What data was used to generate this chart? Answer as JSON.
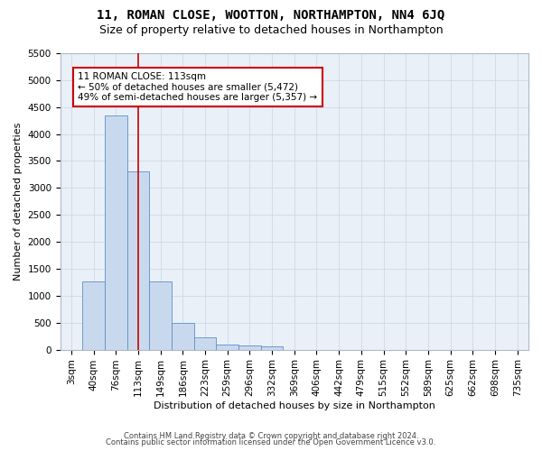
{
  "title": "11, ROMAN CLOSE, WOOTTON, NORTHAMPTON, NN4 6JQ",
  "subtitle": "Size of property relative to detached houses in Northampton",
  "xlabel": "Distribution of detached houses by size in Northampton",
  "ylabel": "Number of detached properties",
  "footnote1": "Contains HM Land Registry data © Crown copyright and database right 2024.",
  "footnote2": "Contains public sector information licensed under the Open Government Licence v3.0.",
  "categories": [
    "3sqm",
    "40sqm",
    "76sqm",
    "113sqm",
    "149sqm",
    "186sqm",
    "223sqm",
    "259sqm",
    "296sqm",
    "332sqm",
    "369sqm",
    "406sqm",
    "442sqm",
    "479sqm",
    "515sqm",
    "552sqm",
    "589sqm",
    "625sqm",
    "662sqm",
    "698sqm",
    "735sqm"
  ],
  "bar_values": [
    0,
    1265,
    4350,
    3300,
    1265,
    490,
    220,
    100,
    75,
    55,
    0,
    0,
    0,
    0,
    0,
    0,
    0,
    0,
    0,
    0,
    0
  ],
  "bar_color": "#c9d9ed",
  "bar_edgecolor": "#5b8fc9",
  "reference_line_x": 3,
  "reference_line_color": "#cc0000",
  "annotation_line1": "11 ROMAN CLOSE: 113sqm",
  "annotation_line2": "← 50% of detached houses are smaller (5,472)",
  "annotation_line3": "49% of semi-detached houses are larger (5,357) →",
  "annotation_box_color": "#cc0000",
  "annotation_box_bg": "#ffffff",
  "ylim": [
    0,
    5500
  ],
  "yticks": [
    0,
    500,
    1000,
    1500,
    2000,
    2500,
    3000,
    3500,
    4000,
    4500,
    5000,
    5500
  ],
  "grid_color": "#d0d8e8",
  "bg_color": "#eaf0f8",
  "title_fontsize": 10,
  "subtitle_fontsize": 9,
  "axis_label_fontsize": 8,
  "tick_fontsize": 7.5,
  "annotation_fontsize": 7.5,
  "footnote_fontsize": 6
}
